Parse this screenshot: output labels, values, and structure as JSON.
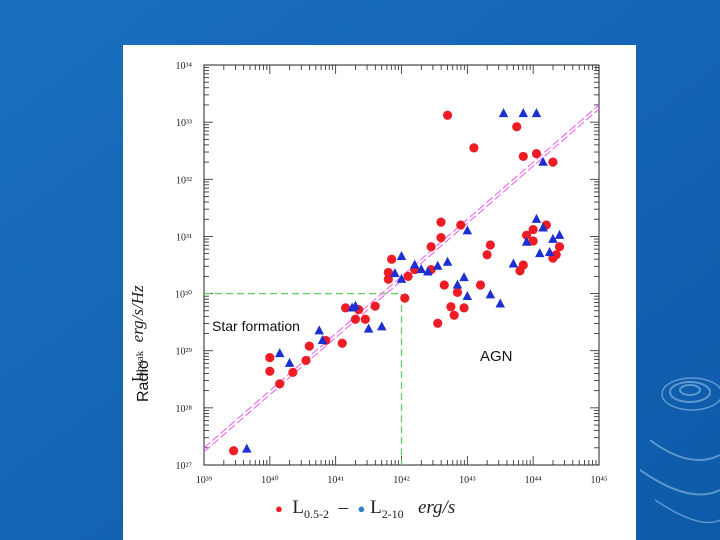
{
  "slide": {
    "background_color": "#1266b8",
    "background_dark": "#0a4f99",
    "ripple_color": "#9ec9ee"
  },
  "chart_data": {
    "type": "scatter",
    "title": "",
    "xlabel": "L 0.5-2 – L 2-10 erg/s",
    "ylabel": "Radio L peak erg/s/Hz",
    "xscale": "log10",
    "yscale": "log10",
    "xlim_exp": [
      39,
      45
    ],
    "ylim_exp": [
      27,
      34
    ],
    "x_tick_labels": [
      "10³⁹",
      "10⁴⁰",
      "10⁴¹",
      "10⁴²",
      "10⁴³",
      "10⁴⁴",
      "10⁴⁵"
    ],
    "y_tick_labels": [
      "10²⁷",
      "10²⁸",
      "10²⁹",
      "10³⁰",
      "10³¹",
      "10³²",
      "10³³",
      "10³⁴"
    ],
    "threshold_lines": {
      "x_exp": 42,
      "y_exp": 30,
      "color": "#66cc66"
    },
    "trend_line": {
      "color": "#ee66ee",
      "from": [
        39,
        27.3
      ],
      "to": [
        45,
        33.3
      ]
    },
    "annotations": [
      "Star formation",
      "AGN",
      "Radio"
    ],
    "series": [
      {
        "name": "L 0.5-2",
        "marker": "circle",
        "color": "#ee1c24",
        "points": [
          [
            39.45,
            27.25
          ],
          [
            40.0,
            28.88
          ],
          [
            40.0,
            28.64
          ],
          [
            40.15,
            28.42
          ],
          [
            40.35,
            28.62
          ],
          [
            40.55,
            28.83
          ],
          [
            40.6,
            29.08
          ],
          [
            40.85,
            29.18
          ],
          [
            41.1,
            29.13
          ],
          [
            41.15,
            29.75
          ],
          [
            41.3,
            29.55
          ],
          [
            41.35,
            29.72
          ],
          [
            41.45,
            29.55
          ],
          [
            41.6,
            29.78
          ],
          [
            41.8,
            30.25
          ],
          [
            42.1,
            30.3
          ],
          [
            42.2,
            30.42
          ],
          [
            41.85,
            30.6
          ],
          [
            41.8,
            30.37
          ],
          [
            42.05,
            29.92
          ],
          [
            42.45,
            30.82
          ],
          [
            42.55,
            29.48
          ],
          [
            42.45,
            30.42
          ],
          [
            42.6,
            30.98
          ],
          [
            42.6,
            31.25
          ],
          [
            42.65,
            30.15
          ],
          [
            42.75,
            29.77
          ],
          [
            42.85,
            30.02
          ],
          [
            42.8,
            29.62
          ],
          [
            42.95,
            29.75
          ],
          [
            42.9,
            31.2
          ],
          [
            43.2,
            30.15
          ],
          [
            43.35,
            30.85
          ],
          [
            43.3,
            30.68
          ],
          [
            43.1,
            32.55
          ],
          [
            42.7,
            33.12
          ],
          [
            43.75,
            32.92
          ],
          [
            43.8,
            30.4
          ],
          [
            43.85,
            30.5
          ],
          [
            43.85,
            32.4
          ],
          [
            43.9,
            31.02
          ],
          [
            44.0,
            30.92
          ],
          [
            44.0,
            31.12
          ],
          [
            44.05,
            32.45
          ],
          [
            44.2,
            31.2
          ],
          [
            44.3,
            30.62
          ],
          [
            44.35,
            30.68
          ],
          [
            44.4,
            30.82
          ],
          [
            44.3,
            32.3
          ]
        ]
      },
      {
        "name": "L 2-10",
        "marker": "triangle",
        "color": "#1c2fd0",
        "points": [
          [
            39.65,
            27.28
          ],
          [
            40.15,
            28.95
          ],
          [
            40.3,
            28.78
          ],
          [
            40.75,
            29.35
          ],
          [
            40.8,
            29.18
          ],
          [
            41.25,
            29.75
          ],
          [
            41.5,
            29.38
          ],
          [
            41.3,
            29.78
          ],
          [
            41.7,
            29.42
          ],
          [
            41.9,
            30.35
          ],
          [
            42.0,
            30.65
          ],
          [
            42.0,
            30.25
          ],
          [
            42.2,
            30.5
          ],
          [
            42.3,
            30.42
          ],
          [
            42.4,
            30.38
          ],
          [
            42.55,
            30.48
          ],
          [
            42.7,
            30.55
          ],
          [
            42.85,
            30.15
          ],
          [
            42.95,
            30.28
          ],
          [
            43.0,
            29.95
          ],
          [
            43.0,
            31.1
          ],
          [
            43.35,
            29.98
          ],
          [
            43.5,
            29.82
          ],
          [
            43.55,
            33.15
          ],
          [
            43.7,
            30.52
          ],
          [
            43.85,
            33.15
          ],
          [
            43.9,
            30.9
          ],
          [
            44.05,
            33.15
          ],
          [
            44.05,
            31.3
          ],
          [
            44.1,
            30.7
          ],
          [
            44.15,
            32.3
          ],
          [
            44.15,
            31.15
          ],
          [
            44.25,
            30.72
          ],
          [
            44.3,
            30.95
          ],
          [
            44.4,
            31.02
          ]
        ]
      }
    ]
  }
}
